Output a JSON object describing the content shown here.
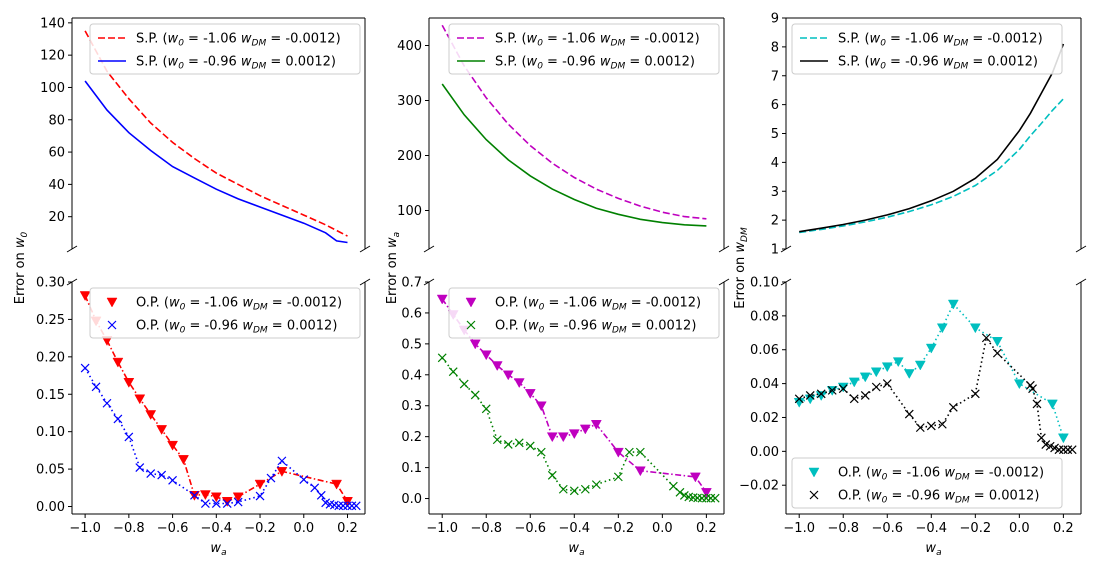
{
  "chart_data": [
    {
      "id": "p11",
      "type": "line",
      "x_label": "",
      "y_label": "",
      "ylim": [
        0,
        143
      ],
      "yticks": [
        20,
        40,
        60,
        80,
        100,
        120,
        140
      ],
      "legend": "top-right",
      "series": [
        {
          "name": "S.P. (w0 = -1.06 wDM = -0.0012)",
          "label_pre": "S.P. (",
          "color": "#ff0000",
          "style": "dashed",
          "x": [
            -1.0,
            -0.9,
            -0.8,
            -0.7,
            -0.6,
            -0.5,
            -0.4,
            -0.3,
            -0.2,
            -0.1,
            0.0,
            0.1,
            0.2
          ],
          "y": [
            135,
            110,
            93,
            78,
            66,
            56,
            47,
            40,
            33,
            27,
            21,
            15,
            8
          ]
        },
        {
          "name": "S.P. (w0 = -0.96 wDM = 0.0012)",
          "label_pre": "S.P. (",
          "color": "#0000ff",
          "style": "solid",
          "x": [
            -1.0,
            -0.9,
            -0.8,
            -0.7,
            -0.6,
            -0.5,
            -0.4,
            -0.3,
            -0.2,
            -0.1,
            0.0,
            0.1,
            0.15,
            0.2
          ],
          "y": [
            104,
            86,
            72,
            61,
            51,
            44,
            37,
            31,
            26,
            21,
            16,
            10,
            5,
            4
          ]
        }
      ]
    },
    {
      "id": "p12",
      "type": "line",
      "x_label": "",
      "y_label": "",
      "ylim": [
        30,
        450
      ],
      "yticks": [
        100,
        200,
        300,
        400
      ],
      "legend": "top-right",
      "series": [
        {
          "name": "S.P. (w0 = -1.06 wDM = -0.0012)",
          "label_pre": "S.P. (",
          "color": "#bf00bf",
          "style": "dashed",
          "x": [
            -1.0,
            -0.9,
            -0.8,
            -0.7,
            -0.6,
            -0.5,
            -0.4,
            -0.3,
            -0.2,
            -0.1,
            0.0,
            0.1,
            0.2
          ],
          "y": [
            437,
            363,
            305,
            257,
            218,
            186,
            160,
            139,
            122,
            108,
            97,
            89,
            85
          ]
        },
        {
          "name": "S.P. (w0 = -0.96 wDM = 0.0012)",
          "label_pre": "S.P. (",
          "color": "#008000",
          "style": "solid",
          "x": [
            -1.0,
            -0.9,
            -0.8,
            -0.7,
            -0.6,
            -0.5,
            -0.4,
            -0.3,
            -0.2,
            -0.1,
            0.0,
            0.1,
            0.2
          ],
          "y": [
            330,
            274,
            229,
            192,
            163,
            139,
            120,
            104,
            93,
            84,
            78,
            74,
            72
          ]
        }
      ]
    },
    {
      "id": "p13",
      "type": "line",
      "x_label": "",
      "y_label": "",
      "ylim": [
        1,
        9
      ],
      "yticks": [
        1,
        2,
        3,
        4,
        5,
        6,
        7,
        8,
        9
      ],
      "legend": "top-left",
      "series": [
        {
          "name": "S.P. (w0 = -1.06 wDM = -0.0012)",
          "label_pre": "S.P. (",
          "color": "#00bfbf",
          "style": "dashed",
          "x": [
            -1.0,
            -0.9,
            -0.8,
            -0.7,
            -0.6,
            -0.5,
            -0.4,
            -0.3,
            -0.2,
            -0.1,
            0.0,
            0.05,
            0.1,
            0.15,
            0.2
          ],
          "y": [
            1.57,
            1.68,
            1.8,
            1.94,
            2.1,
            2.3,
            2.53,
            2.82,
            3.2,
            3.72,
            4.45,
            4.92,
            5.35,
            5.8,
            6.2
          ]
        },
        {
          "name": "S.P. (w0 = -0.96 wDM = 0.0012)",
          "label_pre": "S.P. (",
          "color": "#000000",
          "style": "solid",
          "x": [
            -1.0,
            -0.9,
            -0.8,
            -0.7,
            -0.6,
            -0.5,
            -0.4,
            -0.3,
            -0.2,
            -0.1,
            0.0,
            0.05,
            0.1,
            0.15,
            0.2
          ],
          "y": [
            1.6,
            1.72,
            1.85,
            2.0,
            2.18,
            2.4,
            2.67,
            3.0,
            3.45,
            4.1,
            5.1,
            5.7,
            6.4,
            7.1,
            8.1
          ]
        }
      ]
    },
    {
      "id": "p21",
      "type": "scatter",
      "x_label": "w_a",
      "y_label": "Error on w0",
      "ylim": [
        -0.01,
        0.3
      ],
      "yticks": [
        0.0,
        0.05,
        0.1,
        0.15,
        0.2,
        0.25,
        0.3
      ],
      "ytick_labels": [
        "0.00",
        "0.05",
        "0.10",
        "0.15",
        "0.20",
        "0.25",
        "0.30"
      ],
      "legend": "top-right",
      "series": [
        {
          "name": "O.P. (w0 = -1.06 wDM = -0.0012)",
          "label_pre": "O.P. (",
          "color": "#ff0000",
          "line": "dashdot",
          "marker": "tri",
          "x": [
            -1.0,
            -0.95,
            -0.9,
            -0.85,
            -0.8,
            -0.75,
            -0.7,
            -0.65,
            -0.6,
            -0.55,
            -0.5,
            -0.45,
            -0.4,
            -0.35,
            -0.3,
            -0.2,
            -0.1,
            0.15,
            0.2
          ],
          "y": [
            0.282,
            0.248,
            0.222,
            0.193,
            0.166,
            0.144,
            0.123,
            0.103,
            0.082,
            0.063,
            0.015,
            0.016,
            0.013,
            0.007,
            0.013,
            0.03,
            0.047,
            0.03,
            0.007
          ]
        },
        {
          "name": "O.P. (w0 = -0.96 wDM = 0.0012)",
          "label_pre": "O.P. (",
          "color": "#0000ff",
          "line": "dotted",
          "marker": "x",
          "x": [
            -1.0,
            -0.95,
            -0.9,
            -0.85,
            -0.8,
            -0.75,
            -0.7,
            -0.65,
            -0.6,
            -0.5,
            -0.45,
            -0.4,
            -0.35,
            -0.3,
            -0.2,
            -0.15,
            -0.1,
            0.0,
            0.05,
            0.08,
            0.1,
            0.12,
            0.14,
            0.16,
            0.18,
            0.2,
            0.22,
            0.24
          ],
          "y": [
            0.185,
            0.16,
            0.138,
            0.117,
            0.093,
            0.052,
            0.044,
            0.042,
            0.035,
            0.015,
            0.004,
            0.004,
            0.004,
            0.006,
            0.014,
            0.038,
            0.061,
            0.036,
            0.025,
            0.015,
            0.005,
            0.003,
            0.002,
            0.001,
            0.001,
            0.001,
            0.001,
            0.001
          ]
        }
      ]
    },
    {
      "id": "p22",
      "type": "scatter",
      "x_label": "w_a",
      "y_label": "Error on w_a",
      "ylim": [
        -0.05,
        0.7
      ],
      "yticks": [
        0.0,
        0.1,
        0.2,
        0.3,
        0.4,
        0.5,
        0.6,
        0.7
      ],
      "ytick_labels": [
        "0.0",
        "0.1",
        "0.2",
        "0.3",
        "0.4",
        "0.5",
        "0.6",
        "0.7"
      ],
      "legend": "top-right",
      "series": [
        {
          "name": "O.P. (w0 = -1.06 wDM = -0.0012)",
          "label_pre": "O.P. (",
          "color": "#bf00bf",
          "line": "dashdot",
          "marker": "tri",
          "x": [
            -1.0,
            -0.95,
            -0.9,
            -0.85,
            -0.8,
            -0.75,
            -0.7,
            -0.65,
            -0.6,
            -0.55,
            -0.5,
            -0.45,
            -0.4,
            -0.35,
            -0.3,
            -0.2,
            -0.1,
            0.15,
            0.2
          ],
          "y": [
            0.645,
            0.595,
            0.545,
            0.5,
            0.465,
            0.43,
            0.4,
            0.375,
            0.34,
            0.3,
            0.2,
            0.2,
            0.21,
            0.225,
            0.24,
            0.15,
            0.09,
            0.07,
            0.02
          ]
        },
        {
          "name": "O.P. (w0 = -0.96 wDM = 0.0012)",
          "label_pre": "O.P. (",
          "color": "#008000",
          "line": "dotted",
          "marker": "x",
          "x": [
            -1.0,
            -0.95,
            -0.9,
            -0.85,
            -0.8,
            -0.75,
            -0.7,
            -0.65,
            -0.6,
            -0.55,
            -0.5,
            -0.45,
            -0.4,
            -0.35,
            -0.3,
            -0.2,
            -0.15,
            -0.1,
            0.05,
            0.08,
            0.1,
            0.12,
            0.14,
            0.16,
            0.18,
            0.2,
            0.22,
            0.24
          ],
          "y": [
            0.455,
            0.41,
            0.37,
            0.335,
            0.29,
            0.19,
            0.175,
            0.18,
            0.17,
            0.15,
            0.075,
            0.03,
            0.025,
            0.03,
            0.045,
            0.07,
            0.15,
            0.15,
            0.04,
            0.02,
            0.01,
            0.005,
            0.003,
            0.002,
            0.001,
            0.001,
            0.001,
            0.001
          ]
        }
      ]
    },
    {
      "id": "p23",
      "type": "scatter",
      "x_label": "w_a",
      "y_label": "Error on w_DM",
      "ylim": [
        -0.037,
        0.1
      ],
      "yticks": [
        -0.02,
        0.0,
        0.02,
        0.04,
        0.06,
        0.08,
        0.1
      ],
      "ytick_labels": [
        "−0.02",
        "0.00",
        "0.02",
        "0.04",
        "0.06",
        "0.08",
        "0.10"
      ],
      "legend": "bottom-left",
      "series": [
        {
          "name": "O.P. (w0 = -1.06 wDM = -0.0012)",
          "label_pre": "O.P. (",
          "color": "#00bfbf",
          "line": "dotted",
          "marker": "tri",
          "x": [
            -1.0,
            -0.95,
            -0.9,
            -0.85,
            -0.8,
            -0.75,
            -0.7,
            -0.65,
            -0.6,
            -0.55,
            -0.5,
            -0.45,
            -0.4,
            -0.35,
            -0.3,
            -0.2,
            -0.1,
            0.0,
            0.15,
            0.2
          ],
          "y": [
            0.029,
            0.031,
            0.033,
            0.036,
            0.038,
            0.041,
            0.044,
            0.047,
            0.05,
            0.053,
            0.046,
            0.051,
            0.061,
            0.073,
            0.087,
            0.073,
            0.065,
            0.04,
            0.028,
            0.008
          ]
        },
        {
          "name": "O.P. (w0 = -0.96 wDM = 0.0012)",
          "label_pre": "O.P. (",
          "color": "#000000",
          "line": "dotted",
          "marker": "x",
          "x": [
            -1.0,
            -0.95,
            -0.9,
            -0.85,
            -0.8,
            -0.75,
            -0.7,
            -0.65,
            -0.6,
            -0.5,
            -0.45,
            -0.4,
            -0.35,
            -0.3,
            -0.2,
            -0.15,
            -0.1,
            0.05,
            0.06,
            0.08,
            0.1,
            0.12,
            0.14,
            0.16,
            0.18,
            0.2,
            0.22,
            0.24
          ],
          "y": [
            0.031,
            0.033,
            0.034,
            0.036,
            0.037,
            0.031,
            0.033,
            0.038,
            0.04,
            0.022,
            0.014,
            0.015,
            0.016,
            0.026,
            0.034,
            0.067,
            0.058,
            0.039,
            0.037,
            0.028,
            0.008,
            0.004,
            0.003,
            0.002,
            0.001,
            0.001,
            0.001,
            0.001
          ]
        }
      ]
    }
  ],
  "axis": {
    "x_ticks": [
      -1.0,
      -0.8,
      -0.6,
      -0.4,
      -0.2,
      0.0,
      0.2
    ],
    "x_tick_labels": [
      "−1.0",
      "−0.8",
      "−0.6",
      "−0.4",
      "−0.2",
      "0.0",
      "0.2"
    ],
    "x_range": [
      -1.06,
      0.28
    ]
  },
  "labels": {
    "xlabel_base": "w",
    "xlabel_sub": "a",
    "ylabel_col1_pre": "Error on ",
    "ylabel_col1_base": "w",
    "ylabel_col1_sub": "0",
    "ylabel_col2_pre": "Error on ",
    "ylabel_col2_base": "w",
    "ylabel_col2_sub": "a",
    "ylabel_col3_pre": "Error on ",
    "ylabel_col3_base": "w",
    "ylabel_col3_sub": "DM",
    "legend_w0_base": "w",
    "legend_w0_sub": "0",
    "legend_wdm_base": "w",
    "legend_wdm_sub": "DM",
    "legend_mid_eq": " = ",
    "legend_val_a_w0": "-1.06 ",
    "legend_val_a_wdm": "-0.0012)",
    "legend_val_b_w0": "-0.96 ",
    "legend_val_b_wdm": "0.0012)"
  },
  "colors": {
    "axis": "#000000",
    "legend_edge": "#cccccc"
  }
}
